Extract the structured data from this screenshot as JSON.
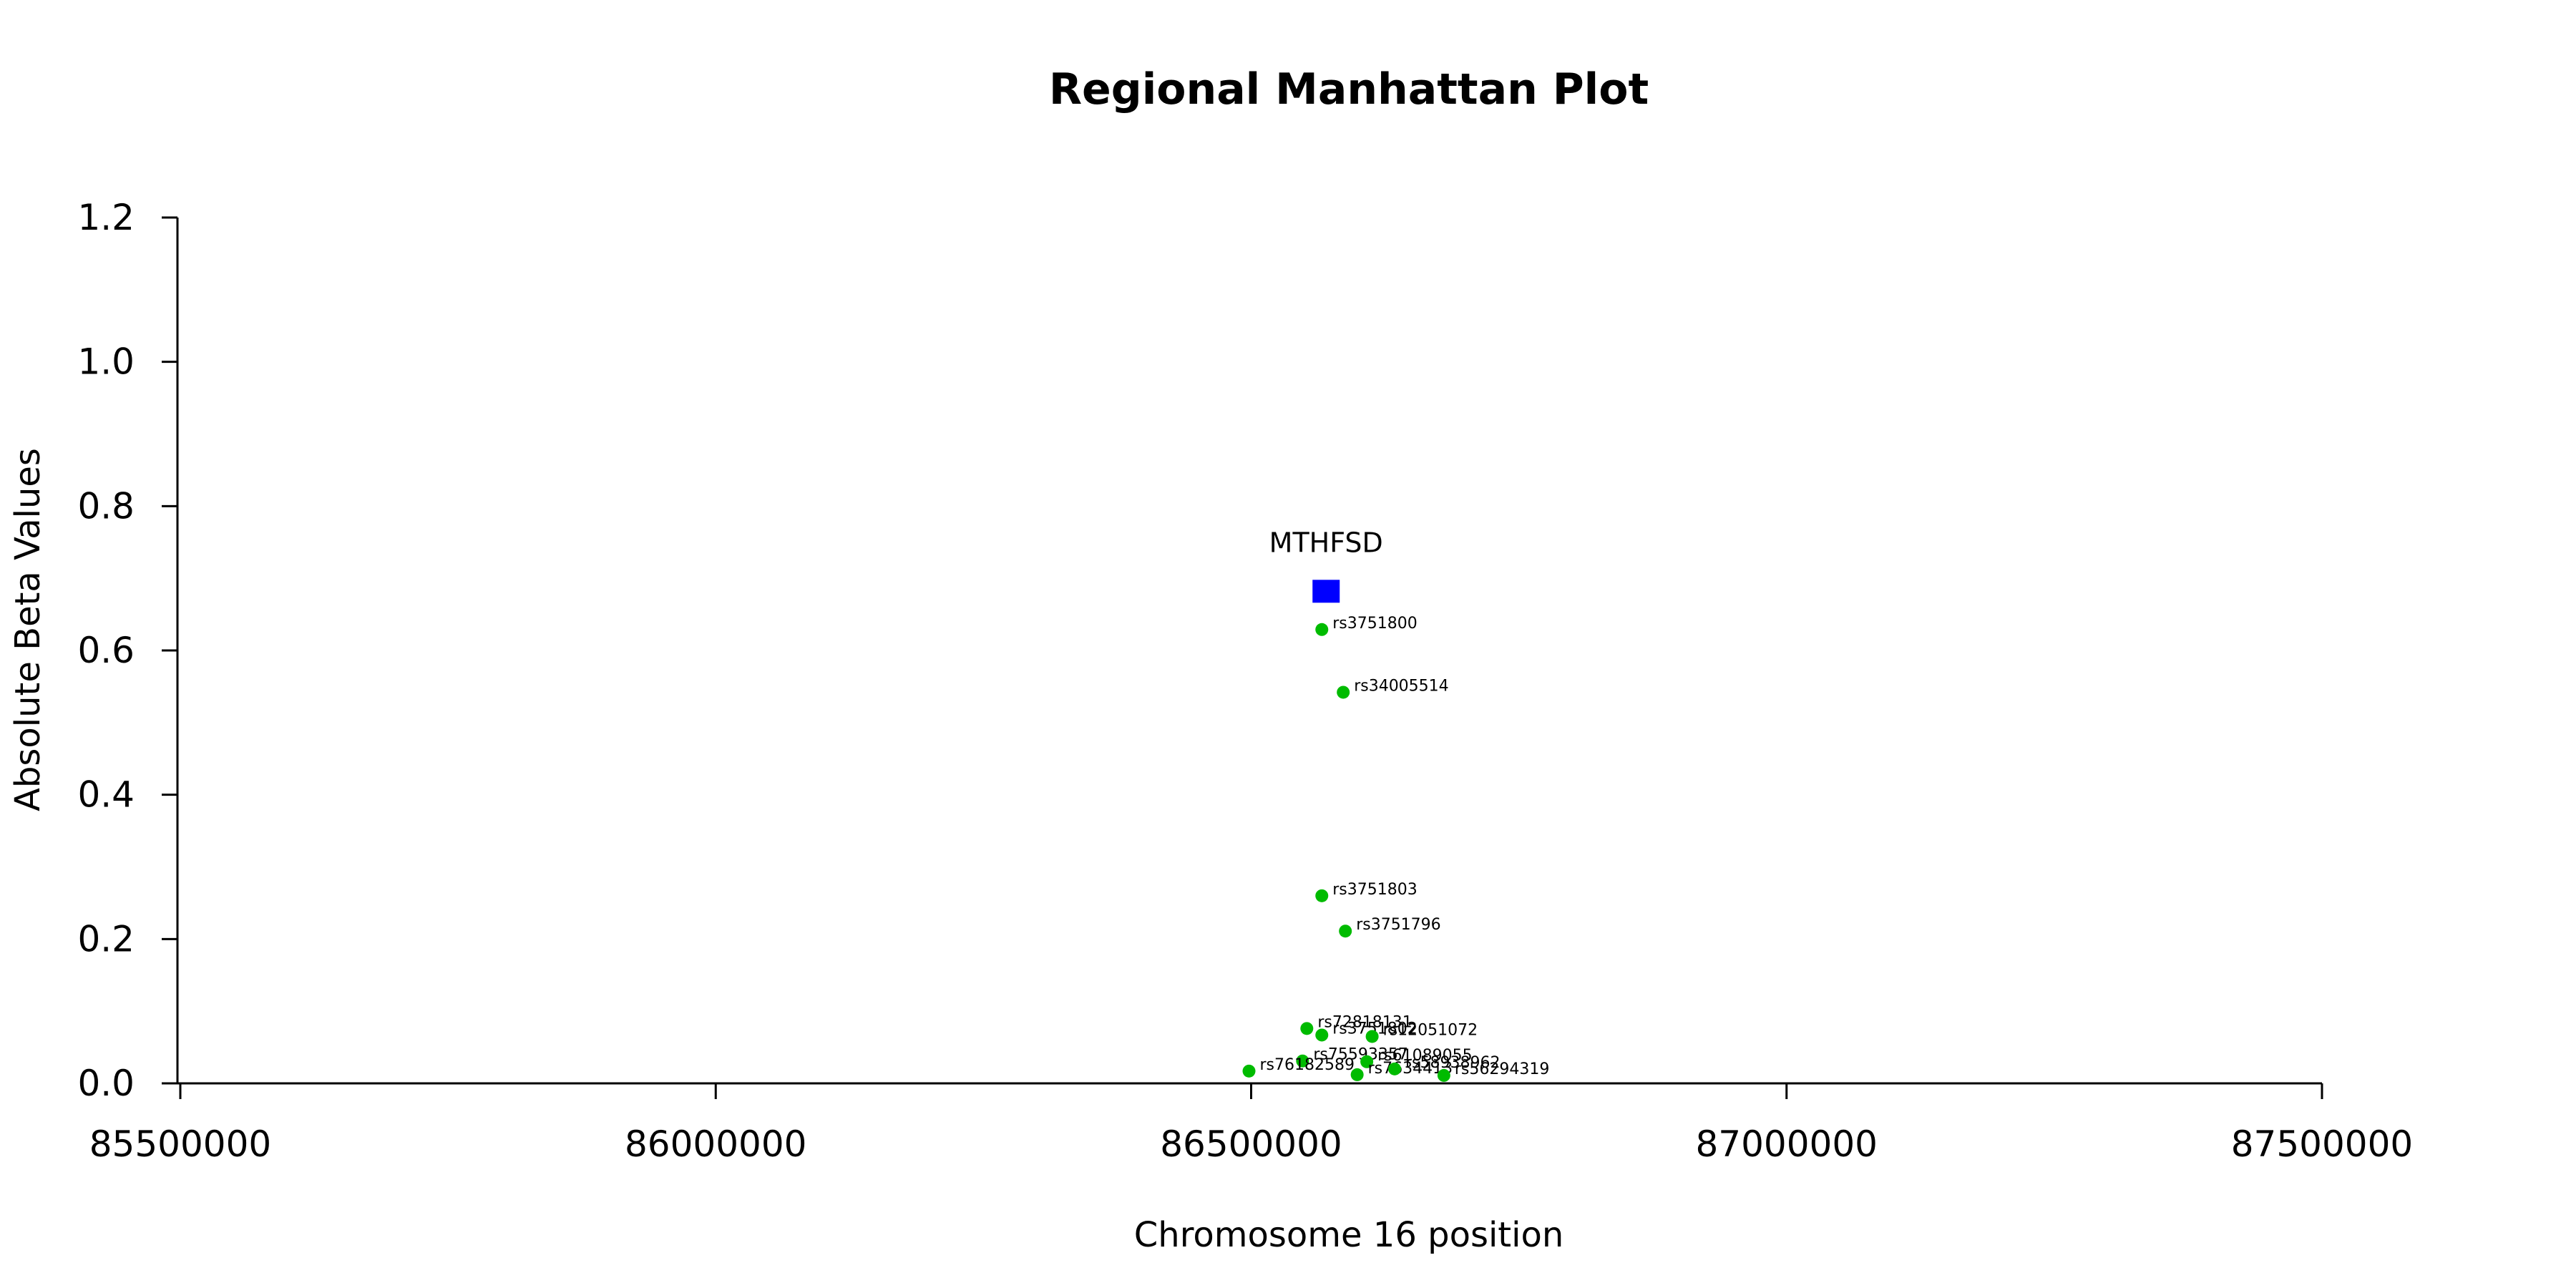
{
  "chart_data": {
    "type": "scatter",
    "title": "Regional Manhattan Plot",
    "xlabel": "Chromosome 16 position",
    "ylabel": "Absolute Beta Values",
    "xlim": [
      85500000,
      87500000
    ],
    "ylim": [
      0.0,
      1.2
    ],
    "xticks": [
      85500000,
      86000000,
      86500000,
      87000000,
      87500000
    ],
    "yticks": [
      0.0,
      0.2,
      0.4,
      0.6,
      0.8,
      1.0,
      1.2
    ],
    "xtick_labels": [
      "85500000",
      "86000000",
      "86500000",
      "87000000",
      "87500000"
    ],
    "ytick_labels": [
      "0.0",
      "0.2",
      "0.4",
      "0.6",
      "0.8",
      "1.0",
      "1.2"
    ],
    "grid": false,
    "gene": {
      "name": "MTHFSD",
      "x": 86570000,
      "y": 0.682,
      "color": "#0000ff"
    },
    "snp_color": "#00bb00",
    "snps": [
      {
        "label": "rs3751800",
        "x": 86566000,
        "y": 0.629
      },
      {
        "label": "rs34005514",
        "x": 86586000,
        "y": 0.542
      },
      {
        "label": "rs3751803",
        "x": 86566000,
        "y": 0.26
      },
      {
        "label": "rs3751796",
        "x": 86588000,
        "y": 0.211
      },
      {
        "label": "rs72818131",
        "x": 86552000,
        "y": 0.076
      },
      {
        "label": "rs3751802",
        "x": 86566000,
        "y": 0.067
      },
      {
        "label": "rs12051072",
        "x": 86613000,
        "y": 0.065
      },
      {
        "label": "rs75593357",
        "x": 86548000,
        "y": 0.031
      },
      {
        "label": "rs61089055",
        "x": 86608000,
        "y": 0.03
      },
      {
        "label": "rs76182589",
        "x": 86498000,
        "y": 0.017
      },
      {
        "label": "rs7634413",
        "x": 86599000,
        "y": 0.012
      },
      {
        "label": "rs58938962",
        "x": 86634000,
        "y": 0.02
      },
      {
        "label": "rs56294319",
        "x": 86680000,
        "y": 0.011
      }
    ]
  }
}
